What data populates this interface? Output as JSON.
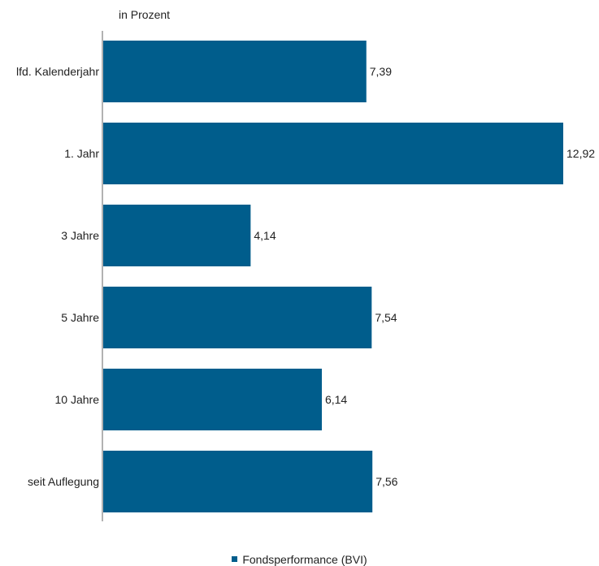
{
  "chart_data": {
    "type": "bar",
    "orientation": "horizontal",
    "unit_label": "in Prozent",
    "categories": [
      "lfd. Kalenderjahr",
      "1. Jahr",
      "3 Jahre",
      "5 Jahre",
      "10 Jahre",
      "seit Auflegung"
    ],
    "series": [
      {
        "name": "Fondsperformance (BVI)",
        "color": "#005d8c",
        "values": [
          7.39,
          12.92,
          4.14,
          7.54,
          6.14,
          7.56
        ],
        "labels": [
          "7,39",
          "12,92",
          "4,14",
          "7,54",
          "6,14",
          "7,56"
        ]
      }
    ],
    "xlim": [
      0,
      13
    ],
    "grid": false,
    "legend_position": "bottom"
  }
}
